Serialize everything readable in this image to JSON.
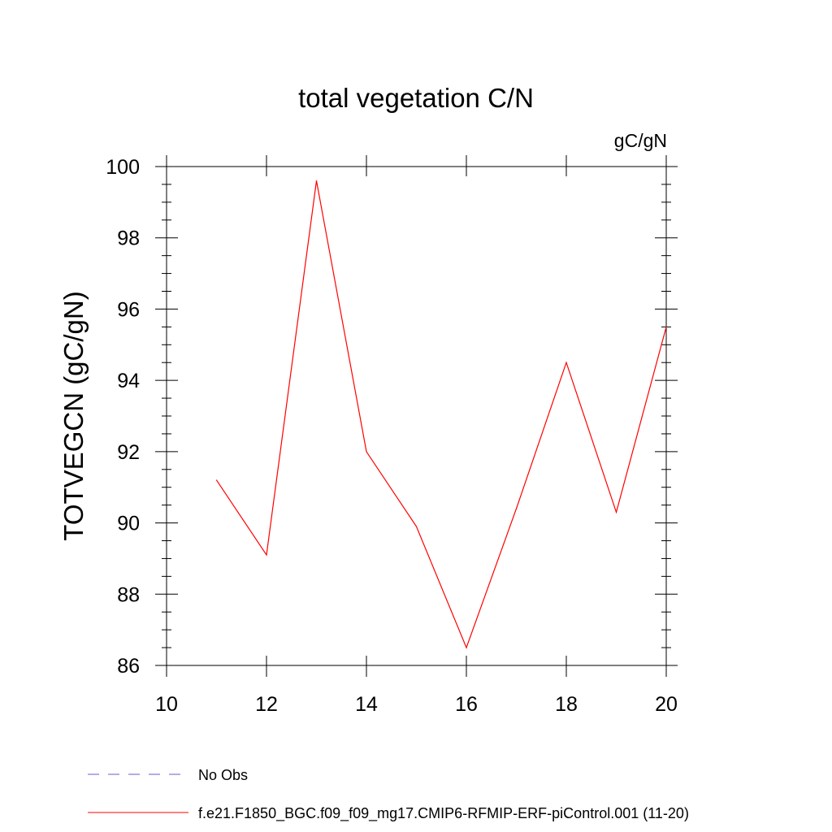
{
  "chart_data": {
    "type": "line",
    "title": "total vegetation C/N",
    "units": "gC/gN",
    "ylabel": "TOTVEGCN  (gC/gN)",
    "xlabel": "",
    "xlim": [
      10,
      20
    ],
    "ylim": [
      86,
      100
    ],
    "x_ticks": [
      10,
      12,
      14,
      16,
      18,
      20
    ],
    "y_ticks": [
      86,
      88,
      90,
      92,
      94,
      96,
      98,
      100
    ],
    "grid": false,
    "legend_position": "bottom-left",
    "series": [
      {
        "name": "f.e21.F1850_BGC.f09_f09_mg17.CMIP6-RFMIP-ERF-piControl.001 (11-20)",
        "color": "#ff0000",
        "style": "solid",
        "x": [
          11,
          12,
          13,
          14,
          15,
          16,
          17,
          18,
          19,
          20
        ],
        "y": [
          91.2,
          89.1,
          99.6,
          92.0,
          89.9,
          86.5,
          90.4,
          94.5,
          90.3,
          95.5
        ]
      }
    ],
    "legend": [
      {
        "label": "No Obs",
        "color": "#6a5acd",
        "style": "dashed"
      },
      {
        "label": "f.e21.F1850_BGC.f09_f09_mg17.CMIP6-RFMIP-ERF-piControl.001 (11-20)",
        "color": "#ff0000",
        "style": "solid"
      }
    ]
  }
}
